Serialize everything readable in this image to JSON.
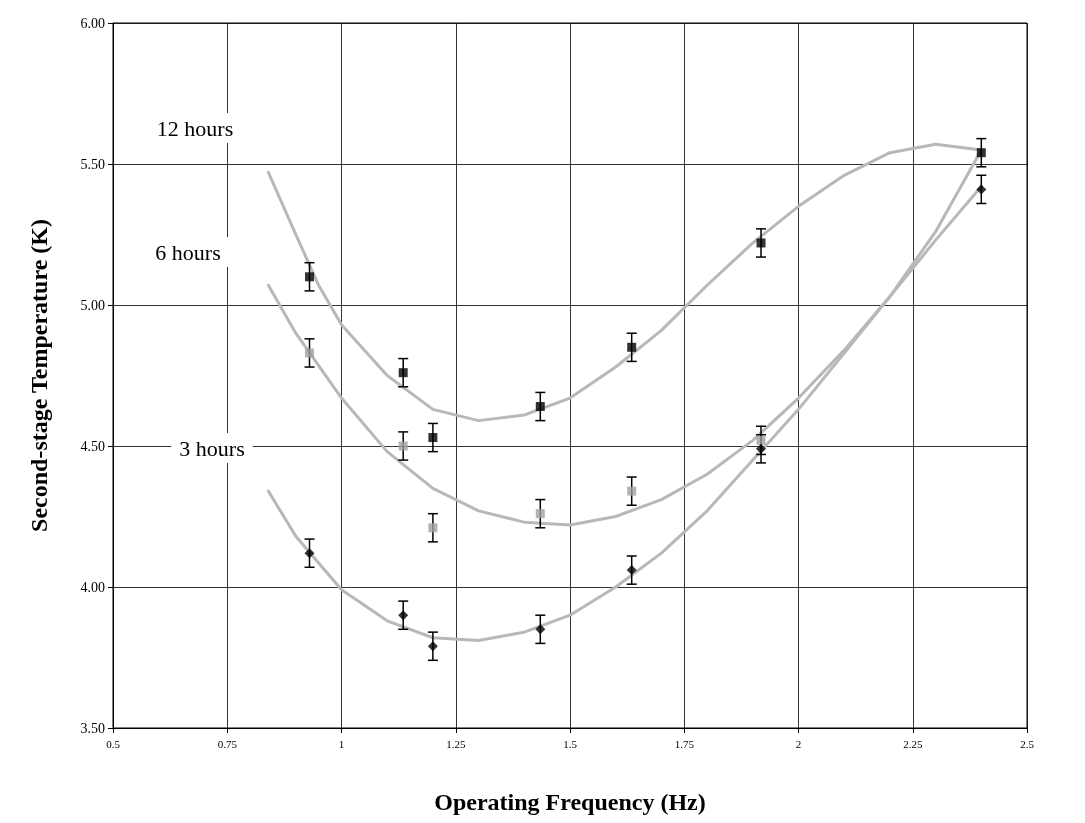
{
  "chart_data": {
    "type": "scatter",
    "xlabel": "Operating Frequency (Hz)",
    "ylabel": "Second-stage Temperature (K)",
    "xlim": [
      0.5,
      2.5
    ],
    "xticks": [
      0.5,
      0.75,
      1,
      1.25,
      1.5,
      1.75,
      2,
      2.25,
      2.5
    ],
    "ylim": [
      3.5,
      6
    ],
    "yticks": [
      {
        "value": 3.5,
        "label": "3.50"
      },
      {
        "value": 4,
        "label": "4.00"
      },
      {
        "value": 4.5,
        "label": "4.50"
      },
      {
        "value": 5,
        "label": "5.00"
      },
      {
        "value": 5.5,
        "label": "5.50"
      },
      {
        "value": 6,
        "label": "6.00"
      }
    ],
    "grid": true,
    "annotations": [
      "12 hours",
      "6 hours",
      "3 hours"
    ],
    "series": [
      {
        "type": "line",
        "color": "#b8b8b8",
        "marker": "none",
        "x": [
          0.84,
          0.9,
          0.95,
          1.0,
          1.1,
          1.2,
          1.3,
          1.4,
          1.5,
          1.6,
          1.7,
          1.8,
          1.9,
          2.0,
          2.1,
          2.2,
          2.3,
          2.4
        ],
        "values": [
          5.47,
          5.25,
          5.07,
          4.93,
          4.75,
          4.63,
          4.59,
          4.61,
          4.67,
          4.78,
          4.91,
          5.07,
          5.22,
          5.35,
          5.46,
          5.54,
          5.57,
          5.55
        ]
      },
      {
        "type": "line",
        "color": "#b8b8b8",
        "marker": "none",
        "x": [
          0.84,
          0.9,
          1.0,
          1.1,
          1.2,
          1.3,
          1.4,
          1.5,
          1.6,
          1.7,
          1.8,
          1.9,
          2.0,
          2.1,
          2.2,
          2.3,
          2.4
        ],
        "values": [
          5.07,
          4.9,
          4.67,
          4.48,
          4.35,
          4.27,
          4.23,
          4.22,
          4.25,
          4.31,
          4.4,
          4.52,
          4.67,
          4.84,
          5.03,
          5.26,
          5.55
        ]
      },
      {
        "type": "line",
        "color": "#b8b8b8",
        "marker": "none",
        "x": [
          0.84,
          0.9,
          1.0,
          1.1,
          1.2,
          1.3,
          1.4,
          1.5,
          1.6,
          1.7,
          1.8,
          1.9,
          2.0,
          2.1,
          2.2,
          2.3,
          2.4
        ],
        "values": [
          4.34,
          4.18,
          3.99,
          3.88,
          3.82,
          3.81,
          3.84,
          3.9,
          4.0,
          4.12,
          4.27,
          4.45,
          4.63,
          4.83,
          5.03,
          5.23,
          5.42
        ]
      },
      {
        "color": "#000000",
        "marker": "square",
        "x": [
          0.93,
          1.135,
          1.2,
          1.435,
          1.635,
          1.918,
          2.4
        ],
        "values": [
          5.1,
          4.76,
          4.53,
          4.64,
          4.85,
          5.22,
          5.54
        ],
        "errors": [
          0.05,
          0.05,
          0.05,
          0.05,
          0.05,
          0.05,
          0.05
        ]
      },
      {
        "color": "#a0a0a0",
        "marker": "square",
        "x": [
          0.93,
          1.135,
          1.2,
          1.435,
          1.635,
          1.918
        ],
        "values": [
          4.83,
          4.5,
          4.21,
          4.26,
          4.34,
          4.52
        ],
        "errors": [
          0.05,
          0.05,
          0.05,
          0.05,
          0.05,
          0.05
        ]
      },
      {
        "color": "#000000",
        "marker": "diamond",
        "x": [
          0.93,
          1.135,
          1.2,
          1.435,
          1.635,
          1.918,
          2.4
        ],
        "values": [
          4.12,
          3.9,
          3.79,
          3.85,
          4.06,
          4.49,
          5.41
        ],
        "errors": [
          0.05,
          0.05,
          0.05,
          0.05,
          0.05,
          0.05,
          0.05
        ]
      }
    ]
  }
}
